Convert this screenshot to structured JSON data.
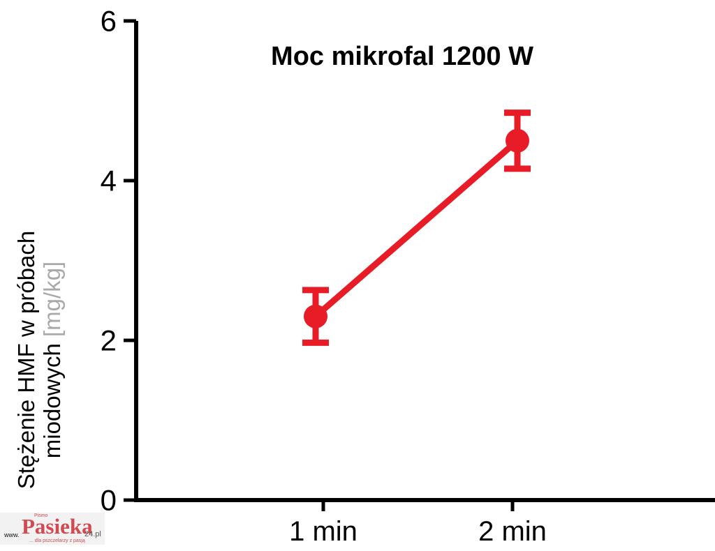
{
  "chart_data": {
    "type": "line",
    "title": "Moc mikrofal 1200 W",
    "categories": [
      "1 min",
      "2 min"
    ],
    "series": [
      {
        "name": "HMF",
        "values": [
          2.3,
          4.5
        ],
        "errors": [
          0.33,
          0.35
        ]
      }
    ],
    "xlabel": "",
    "ylabel_line1": "Stężenie HMF w próbach",
    "ylabel_line2": "miodowych",
    "ylabel_unit": "[mg/kg]",
    "ylim": [
      0,
      6
    ],
    "yticks": [
      0,
      2,
      4,
      6
    ],
    "grid": false,
    "legend": "none",
    "marker": "circle-with-error-bars",
    "colors": {
      "series": "#e81c27",
      "axis": "#000000",
      "unit_text": "#a9a9a9"
    }
  },
  "watermark": {
    "prefix": "www.",
    "name": "Pasieka",
    "suffix": "24.pl",
    "top_label": "Pismo",
    "tagline": "... dla pszczelarzy z pasją",
    "colors": {
      "name": "#d4494f",
      "bg": "#f2f2f2"
    }
  }
}
